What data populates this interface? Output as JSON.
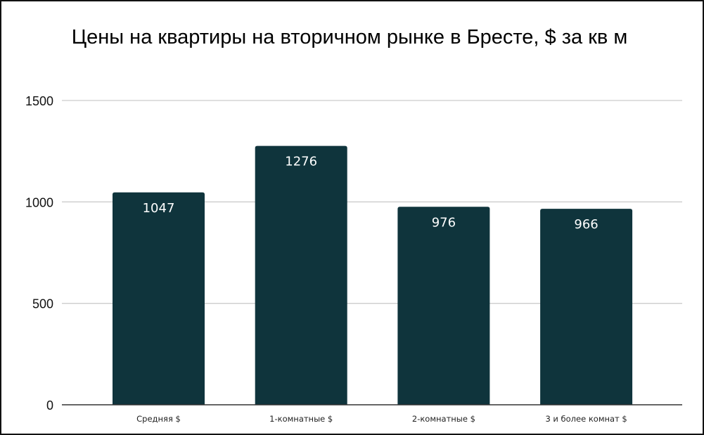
{
  "chart_data": {
    "type": "bar",
    "title": "Цены на квартиры на вторичном рынке в Бресте, $ за кв м",
    "xlabel": "",
    "ylabel": "",
    "categories": [
      "Средняя $",
      "1-комнатные $",
      "2-комнатные $",
      "3 и более комнат $"
    ],
    "values": [
      1047,
      1276,
      976,
      966
    ],
    "data_labels": [
      "1047",
      "1276",
      "976",
      "966"
    ],
    "ylim": [
      0,
      1500
    ],
    "yticks": [
      0,
      500,
      1000,
      1500
    ],
    "ytick_labels": [
      "0",
      "500",
      "1000",
      "1500"
    ],
    "grid": true,
    "legend": "none",
    "colors": {
      "bar": "#0f343c",
      "grid": "#cccccc",
      "axis": "#333333"
    }
  }
}
